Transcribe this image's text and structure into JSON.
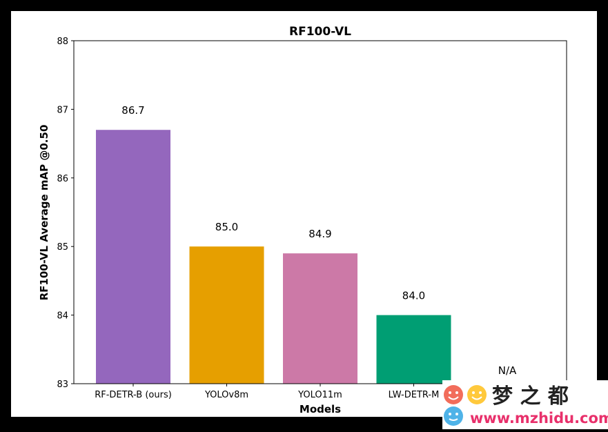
{
  "chart_data": {
    "type": "bar",
    "title": "RF100-VL",
    "xlabel": "Models",
    "ylabel": "RF100-VL Average mAP @0.50",
    "ylim": [
      83,
      88
    ],
    "yticks": [
      "83",
      "84",
      "85",
      "86",
      "87",
      "88"
    ],
    "categories": [
      "RF-DETR-B (ours)",
      "YOLOv8m",
      "YOLO11m",
      "LW-DETR-M",
      ""
    ],
    "values": [
      86.7,
      85.0,
      84.9,
      84.0,
      null
    ],
    "value_labels": [
      "86.7",
      "85.0",
      "84.9",
      "84.0",
      "N/A"
    ],
    "colors": [
      "#9467bd",
      "#e69f00",
      "#cc79a7",
      "#009e73",
      "#ffffff"
    ],
    "grid": false,
    "legend": "none"
  },
  "watermark": {
    "brand": "梦 之 都",
    "url": "www.mzhidu.com",
    "icon_colors": [
      "#f26d5b",
      "#ffc93c",
      "#4fb3e8"
    ]
  }
}
